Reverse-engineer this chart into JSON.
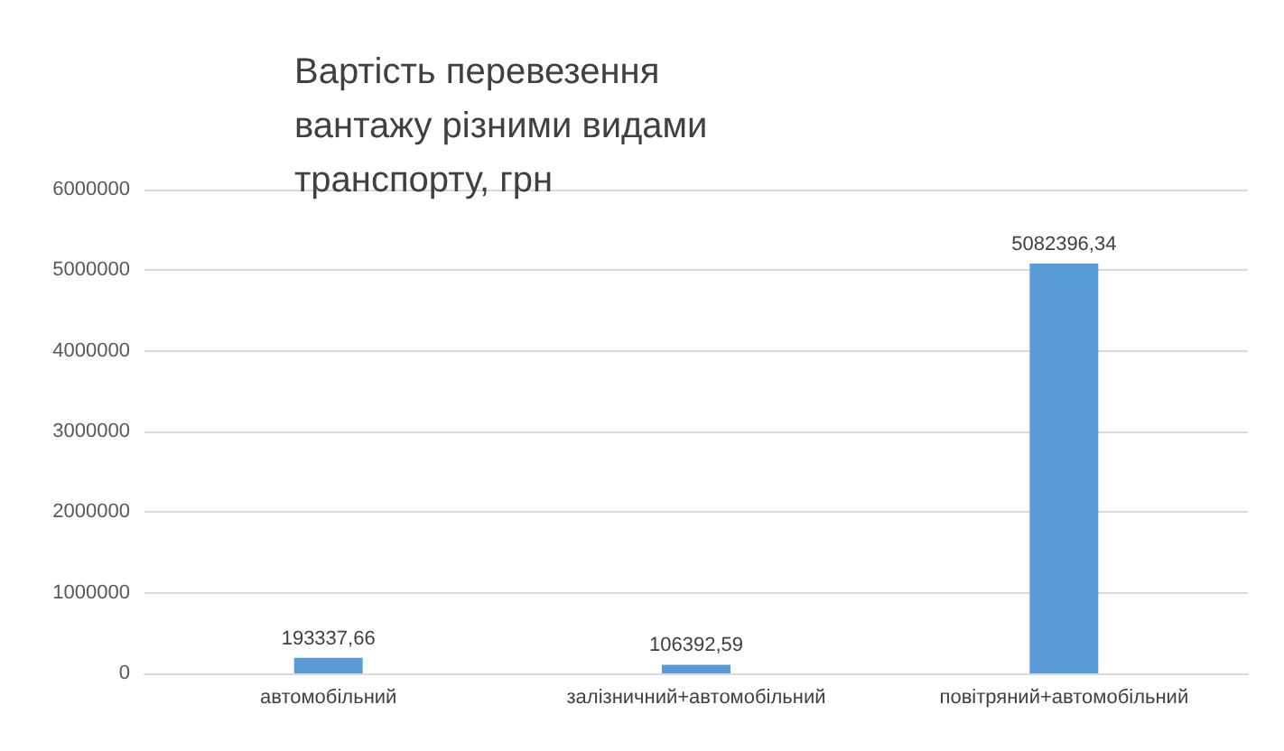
{
  "chart_data": {
    "type": "bar",
    "title": "Вартість перевезення вантажу різними видами транспорту, грн",
    "categories": [
      "автомобільний",
      "залізничний+автомобільний",
      "повітряний+автомобільний"
    ],
    "values": [
      193337.66,
      106392.59,
      5082396.34
    ],
    "value_labels": [
      "193337,66",
      "106392,59",
      "5082396,34"
    ],
    "color": "#5b9bd5",
    "ylim": [
      0,
      6000000
    ],
    "yticks": [
      0,
      1000000,
      2000000,
      3000000,
      4000000,
      5000000,
      6000000
    ],
    "grid": "y"
  }
}
